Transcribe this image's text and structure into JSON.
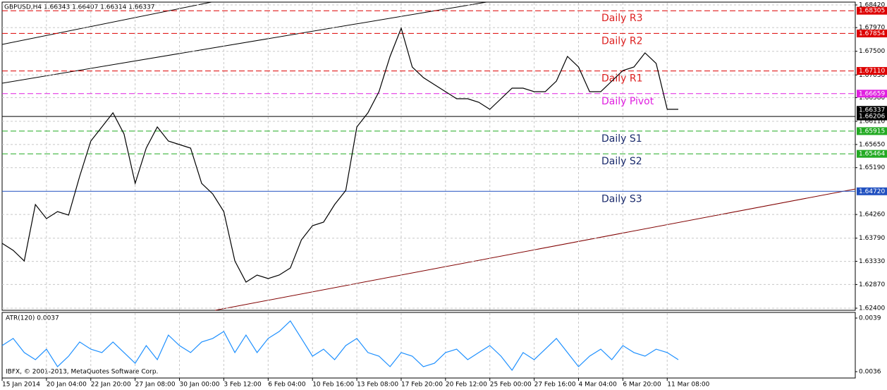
{
  "chart_data": {
    "type": "line",
    "title": "GBPUSD,H4 1.66343 1.66407 1.66314 1.66337",
    "x": [
      0,
      4,
      8,
      12,
      16,
      20,
      24,
      28,
      32,
      36,
      40,
      44,
      48,
      52,
      56,
      60,
      64,
      68,
      72,
      76,
      80,
      84,
      88,
      92,
      96,
      100,
      104,
      108,
      112,
      116,
      120,
      124,
      128,
      132,
      136,
      140,
      144,
      148,
      152,
      156,
      160,
      164,
      168,
      172,
      176,
      180,
      184,
      188,
      192,
      196,
      200,
      204,
      208,
      212,
      216,
      220,
      224,
      228,
      232,
      236,
      240,
      244
    ],
    "xlim": [
      0,
      244
    ],
    "xticks": [
      {
        "value": 0,
        "label": "15 Jan 2014"
      },
      {
        "value": 16,
        "label": "20 Jan 04:00"
      },
      {
        "value": 32,
        "label": "22 Jan 20:00"
      },
      {
        "value": 48,
        "label": "27 Jan 08:00"
      },
      {
        "value": 64,
        "label": "30 Jan 00:00"
      },
      {
        "value": 80,
        "label": "3 Feb 12:00"
      },
      {
        "value": 96,
        "label": "6 Feb 04:00"
      },
      {
        "value": 112,
        "label": "10 Feb 16:00"
      },
      {
        "value": 128,
        "label": "13 Feb 08:00"
      },
      {
        "value": 144,
        "label": "17 Feb 20:00"
      },
      {
        "value": 160,
        "label": "20 Feb 12:00"
      },
      {
        "value": 176,
        "label": "25 Feb 00:00"
      },
      {
        "value": 192,
        "label": "27 Feb 16:00"
      },
      {
        "value": 208,
        "label": "4 Mar 04:00"
      },
      {
        "value": 224,
        "label": "6 Mar 20:00"
      },
      {
        "value": 240,
        "label": "11 Mar 08:00"
      }
    ],
    "series": [
      {
        "name": "GBPUSD",
        "color": "#000000",
        "values": [
          1.63688,
          1.63548,
          1.63338,
          1.64458,
          1.64178,
          1.64318,
          1.64248,
          1.65018,
          1.65718,
          1.65998,
          1.66278,
          1.65858,
          1.64878,
          1.65578,
          1.65998,
          1.65718,
          1.65648,
          1.65578,
          1.64878,
          1.64668,
          1.64318,
          1.63338,
          1.62918,
          1.63058,
          1.62988,
          1.63058,
          1.63198,
          1.63758,
          1.64038,
          1.64108,
          1.64458,
          1.64738,
          1.65998,
          1.66278,
          1.66698,
          1.67398,
          1.67958,
          1.67188,
          1.66978,
          1.66838,
          1.66698,
          1.66558,
          1.66558,
          1.66488,
          1.66348,
          1.66558,
          1.66768,
          1.66768,
          1.66698,
          1.66698,
          1.66908,
          1.67398,
          1.67188,
          1.66698,
          1.66698,
          1.66908,
          1.67118,
          1.67188,
          1.67468,
          1.67258,
          1.66348,
          1.66348
        ]
      }
    ],
    "ylim": [
      1.624,
      1.6842
    ],
    "yticks": [
      {
        "value": 1.6842,
        "label": "1.68420"
      },
      {
        "value": 1.6797,
        "label": "1.67970"
      },
      {
        "value": 1.675,
        "label": "1.67500"
      },
      {
        "value": 1.6703,
        "label": "1.67030"
      },
      {
        "value": 1.6658,
        "label": "1.66580"
      },
      {
        "value": 1.6611,
        "label": "1.66110"
      },
      {
        "value": 1.6565,
        "label": "1.65650"
      },
      {
        "value": 1.6519,
        "label": "1.65190"
      },
      {
        "value": 1.6426,
        "label": "1.64260"
      },
      {
        "value": 1.6379,
        "label": "1.63790"
      },
      {
        "value": 1.6333,
        "label": "1.63330"
      },
      {
        "value": 1.6287,
        "label": "1.62870"
      },
      {
        "value": 1.624,
        "label": "1.62400"
      }
    ],
    "grid": true,
    "levels": [
      {
        "name": "Daily R3",
        "value": 1.68305,
        "label": "1.68305",
        "color": "#dd0000",
        "text_color": "#dd2020"
      },
      {
        "name": "Daily R2",
        "value": 1.67854,
        "label": "1.67854",
        "color": "#dd0000",
        "text_color": "#dd2020"
      },
      {
        "name": "Daily R1",
        "value": 1.6711,
        "label": "1.67110",
        "color": "#dd0000",
        "text_color": "#dd2020"
      },
      {
        "name": "Daily Pivot",
        "value": 1.66659,
        "label": "1.66659",
        "color": "#e020e0",
        "text_color": "#e020e0"
      },
      {
        "name": "Daily S1",
        "value": 1.65915,
        "label": "1.65915",
        "color": "#22aa22",
        "text_color": "#1a2a6c"
      },
      {
        "name": "Daily S2",
        "value": 1.65464,
        "label": "1.65464",
        "color": "#22aa22",
        "text_color": "#1a2a6c"
      },
      {
        "name": "Daily S3",
        "value": 1.6472,
        "label": "1.64720",
        "color": "#2050c0",
        "text_color": "#1a2a6c"
      }
    ],
    "markers": [
      {
        "value": 1.66337,
        "label": "1.66337"
      },
      {
        "value": 1.66206,
        "label": "1.66206"
      }
    ],
    "indicator": {
      "title": "ATR(120) 0.0037",
      "color": "#1e90ff",
      "values": [
        0.003746,
        0.003786,
        0.003707,
        0.003667,
        0.003726,
        0.003628,
        0.003687,
        0.003766,
        0.003726,
        0.003707,
        0.003766,
        0.003707,
        0.003647,
        0.003746,
        0.003667,
        0.003805,
        0.003746,
        0.003707,
        0.003766,
        0.003786,
        0.003825,
        0.003707,
        0.003805,
        0.003707,
        0.003786,
        0.003825,
        0.003884,
        0.003786,
        0.003687,
        0.003726,
        0.003667,
        0.003746,
        0.003786,
        0.003707,
        0.003687,
        0.003628,
        0.003707,
        0.003687,
        0.003628,
        0.003647,
        0.003707,
        0.003726,
        0.003667,
        0.003707,
        0.003746,
        0.003687,
        0.003608,
        0.003707,
        0.003667,
        0.003726,
        0.003786,
        0.003707,
        0.003628,
        0.003687,
        0.003726,
        0.003667,
        0.003746,
        0.003707,
        0.003687,
        0.003726,
        0.003707,
        0.003667
      ],
      "ylim": [
        0.0036,
        0.0039
      ],
      "yticks": [
        0.0039,
        0.0036
      ]
    },
    "footer": "IBFX, © 2001-2013, MetaQuotes Software Corp."
  }
}
